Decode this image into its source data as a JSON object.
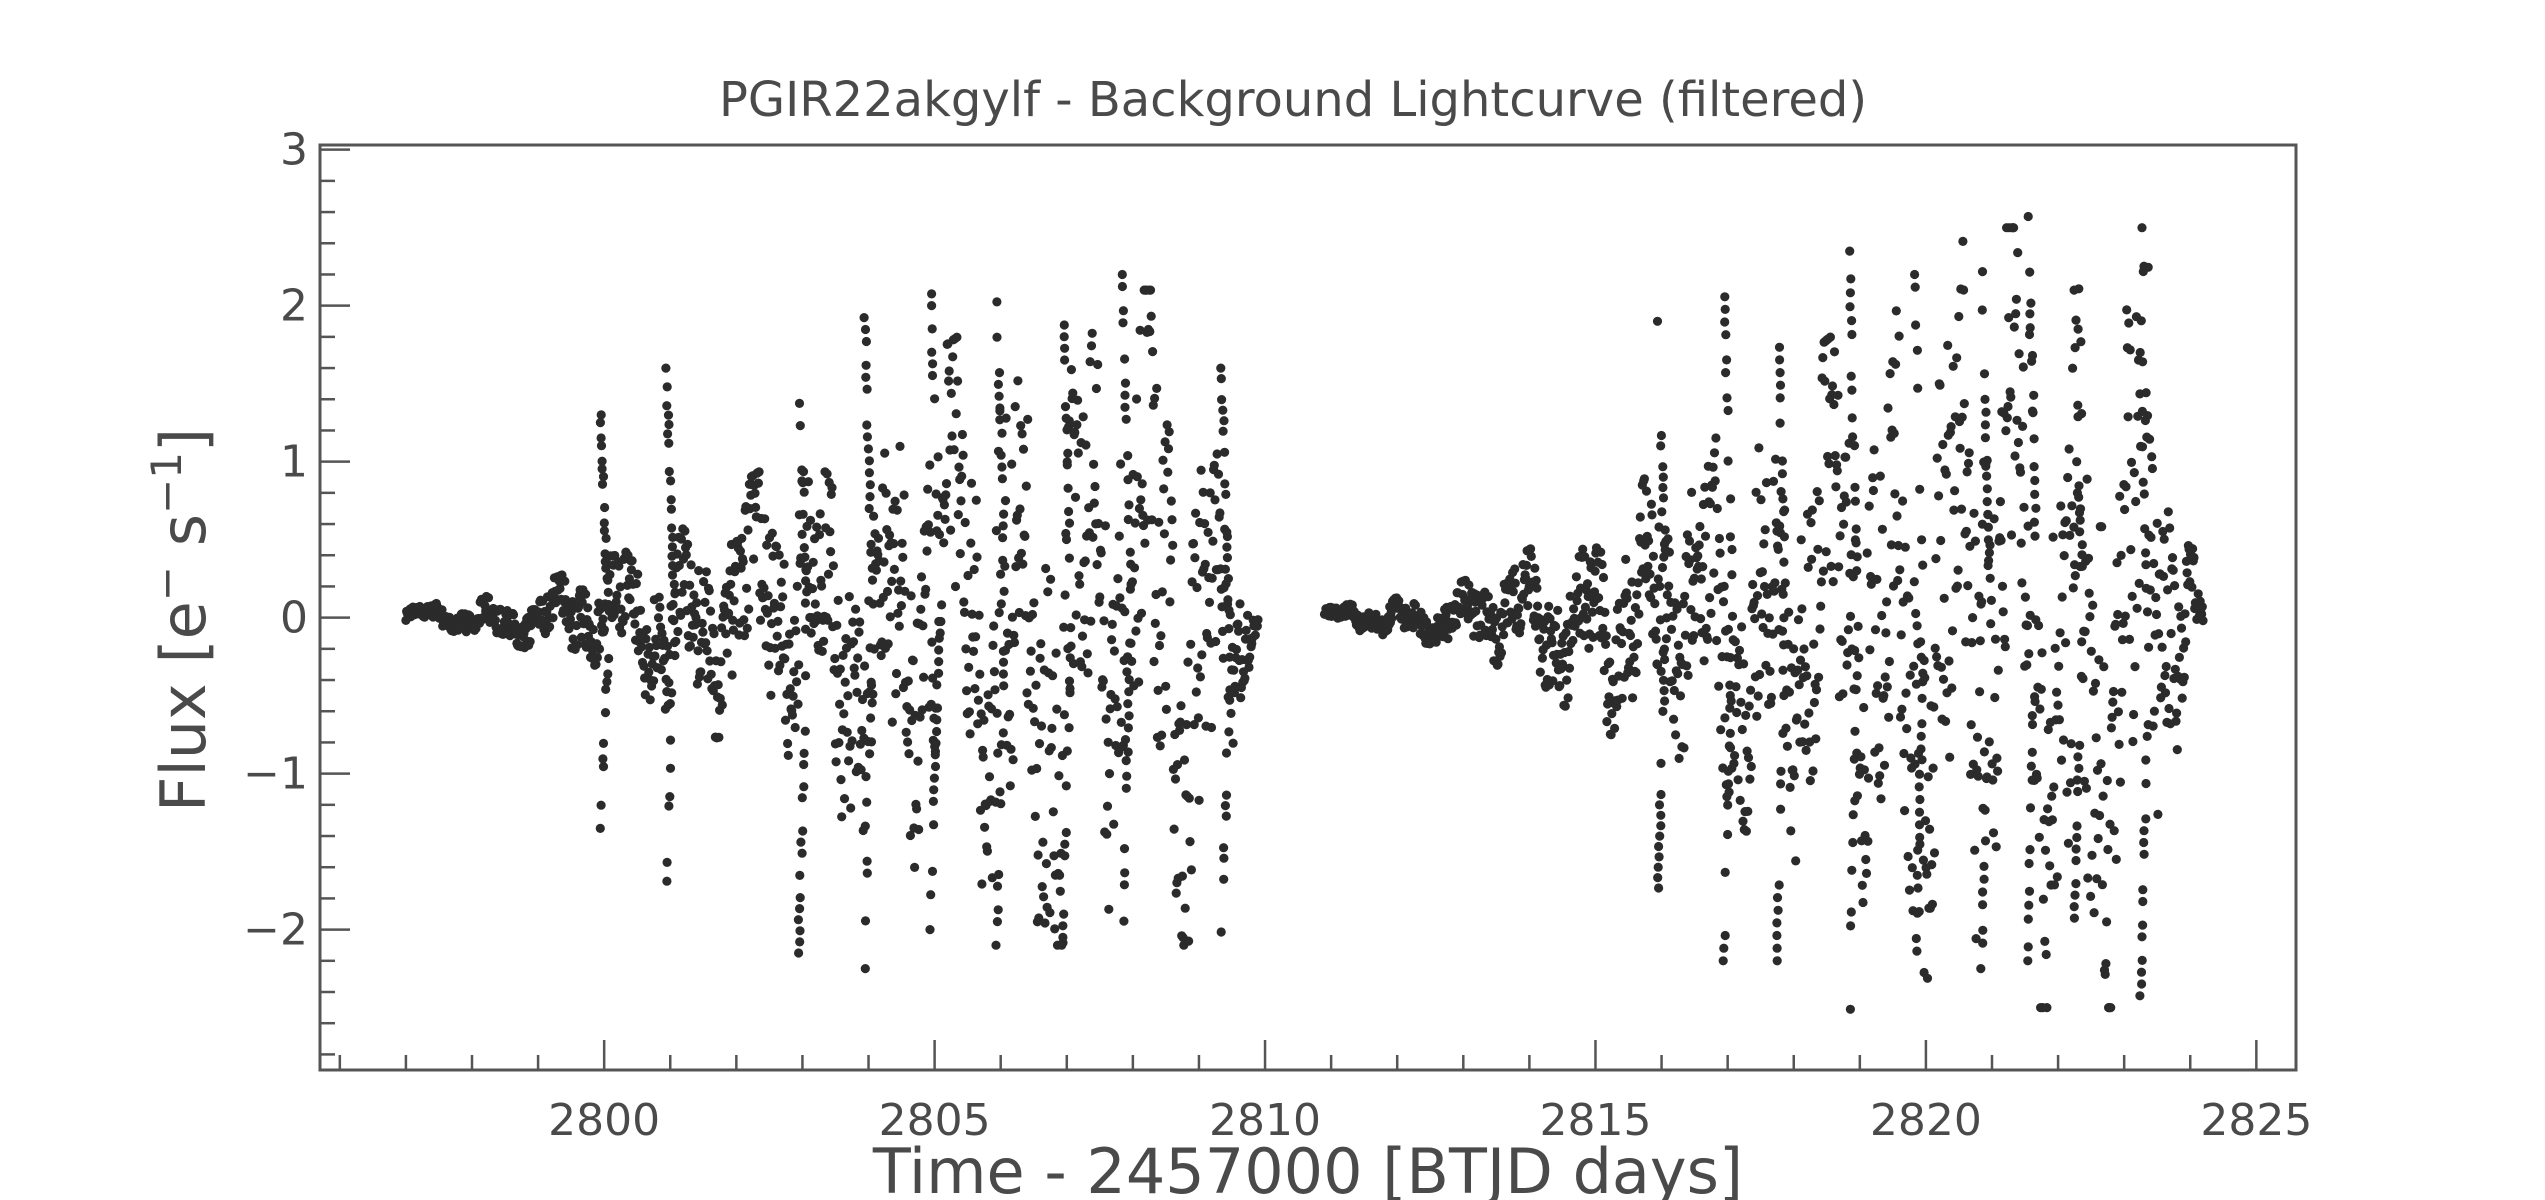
{
  "chart_data": {
    "type": "scatter",
    "title": "PGIR22akgylf  - Background Lightcurve (filtered)",
    "xlabel": "Time - 2457000 [BTJD days]",
    "ylabel_main": "Flux [e",
    "ylabel_sup1": "−",
    "ylabel_mid": " s",
    "ylabel_sup2": "−1",
    "ylabel_end": "]",
    "xlim": [
      2795.7,
      2825.6
    ],
    "ylim": [
      -2.9,
      3.03
    ],
    "x_ticks": [
      2800,
      2805,
      2810,
      2815,
      2820,
      2825
    ],
    "x_tick_labels": [
      "2800",
      "2805",
      "2810",
      "2815",
      "2820",
      "2825"
    ],
    "y_ticks": [
      -2,
      -1,
      0,
      1,
      2,
      3
    ],
    "y_tick_labels": [
      "−2",
      "−1",
      "0",
      "1",
      "2",
      "3"
    ],
    "grid": false,
    "marker_color": "#2b2b2b",
    "segments": [
      {
        "x_start": 2797.0,
        "x_end": 2809.9,
        "amp_peak": 2.1,
        "amp_mid": 1.6,
        "osc_period": 1.0
      },
      {
        "x_start": 2810.9,
        "x_end": 2824.2,
        "amp_peak": 2.5,
        "amp_mid": 1.85,
        "osc_period": 0.93
      }
    ],
    "tracks": [
      {
        "x": 2800.0,
        "y_top": 1.3,
        "y_bottom": -1.45
      },
      {
        "x": 2801.0,
        "y_top": 1.6,
        "y_bottom": -1.75
      },
      {
        "x": 2803.0,
        "y_top": 1.8,
        "y_bottom": -2.15
      },
      {
        "x": 2804.0,
        "y_top": 2.0,
        "y_bottom": -2.25
      },
      {
        "x": 2805.0,
        "y_top": 2.15,
        "y_bottom": -2.0
      },
      {
        "x": 2806.0,
        "y_top": 2.1,
        "y_bottom": -2.1
      },
      {
        "x": 2807.0,
        "y_top": 2.1,
        "y_bottom": -2.05
      },
      {
        "x": 2807.9,
        "y_top": 2.2,
        "y_bottom": -2.1
      },
      {
        "x": 2809.4,
        "y_top": 1.6,
        "y_bottom": -2.15
      },
      {
        "x": 2816.0,
        "y_top": 1.9,
        "y_bottom": -1.8
      },
      {
        "x": 2817.0,
        "y_top": 2.3,
        "y_bottom": -2.2
      },
      {
        "x": 2817.8,
        "y_top": 2.3,
        "y_bottom": -2.2
      },
      {
        "x": 2818.9,
        "y_top": 2.35,
        "y_bottom": -2.6
      },
      {
        "x": 2819.9,
        "y_top": 2.2,
        "y_bottom": -2.3
      },
      {
        "x": 2820.9,
        "y_top": 2.3,
        "y_bottom": -2.25
      },
      {
        "x": 2821.6,
        "y_top": 2.75,
        "y_bottom": -2.2
      },
      {
        "x": 2822.3,
        "y_top": 2.1,
        "y_bottom": -2.0
      },
      {
        "x": 2823.3,
        "y_top": 1.7,
        "y_bottom": -2.5
      }
    ]
  }
}
